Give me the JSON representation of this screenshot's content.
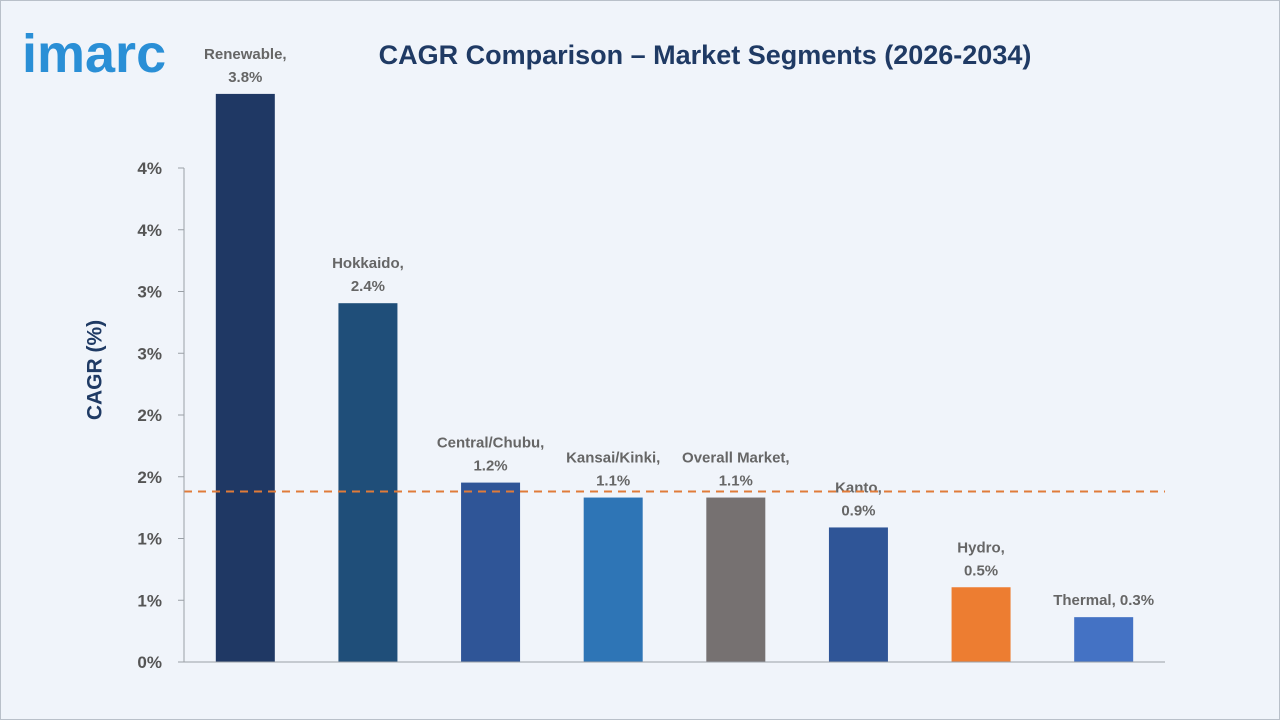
{
  "brand": {
    "logo_text": "imarc"
  },
  "colors": {
    "title": "#1f3a64",
    "reference_line": "#e07b39",
    "axis": "#9aa0a6"
  },
  "chart_data": {
    "type": "bar",
    "title": "CAGR Comparison – Market Segments (2026-2034)",
    "xlabel": "",
    "ylabel": "CAGR (%)",
    "ylim": [
      0,
      4
    ],
    "y_ticks": [
      0,
      0.5,
      1,
      1.5,
      2,
      2.5,
      3,
      3.5,
      4
    ],
    "y_tick_labels": [
      "0%",
      "1%",
      "1%",
      "2%",
      "2%",
      "3%",
      "3%",
      "4%",
      "4%"
    ],
    "categories": [
      "Renewable",
      "Hokkaido",
      "Central/Chubu",
      "Kansai/Kinki",
      "Overall Market",
      "Kanto",
      "Hydro",
      "Thermal"
    ],
    "values": [
      3.8,
      2.4,
      1.2,
      1.1,
      1.1,
      0.9,
      0.5,
      0.3
    ],
    "data_labels": [
      [
        "Renewable,",
        "3.8%"
      ],
      [
        "Hokkaido,",
        "2.4%"
      ],
      [
        "Central/Chubu,",
        "1.2%"
      ],
      [
        "Kansai/Kinki,",
        "1.1%"
      ],
      [
        "Overall Market,",
        "1.1%"
      ],
      [
        "Kanto,",
        "0.9%"
      ],
      [
        "Hydro,",
        "0.5%"
      ],
      [
        "Thermal, 0.3%"
      ]
    ],
    "bar_colors": [
      "#1f3864",
      "#1f4e79",
      "#2f5597",
      "#2e75b6",
      "#767171",
      "#2f5597",
      "#ed7d31",
      "#4472c4"
    ],
    "reference_line": {
      "value": 1.1,
      "style": "dashed"
    },
    "grid": false,
    "legend": "none"
  }
}
